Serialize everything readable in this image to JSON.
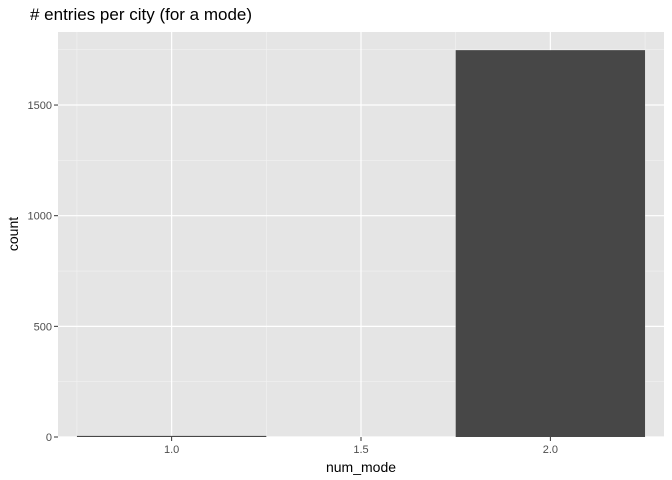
{
  "chart_data": {
    "type": "bar",
    "title": "# entries per city (for a mode)",
    "xlabel": "num_mode",
    "ylabel": "count",
    "x": [
      1.0,
      2.0
    ],
    "values": [
      5,
      1748
    ],
    "bar_width": 0.5,
    "xlim": [
      0.7,
      2.3
    ],
    "ylim": [
      0,
      1830
    ],
    "x_ticks": [
      1.0,
      1.5,
      2.0
    ],
    "x_tick_labels": [
      "1.0",
      "1.5",
      "2.0"
    ],
    "y_ticks": [
      0,
      500,
      1000,
      1500
    ],
    "y_tick_labels": [
      "0",
      "500",
      "1000",
      "1500"
    ],
    "grid": true,
    "legend": "none",
    "colors": {
      "panel_background": "#e5e5e5",
      "grid_major": "#ffffff",
      "grid_minor": "#f2f2f2",
      "bar_fill": "#474747",
      "tick_color": "#333333"
    }
  }
}
